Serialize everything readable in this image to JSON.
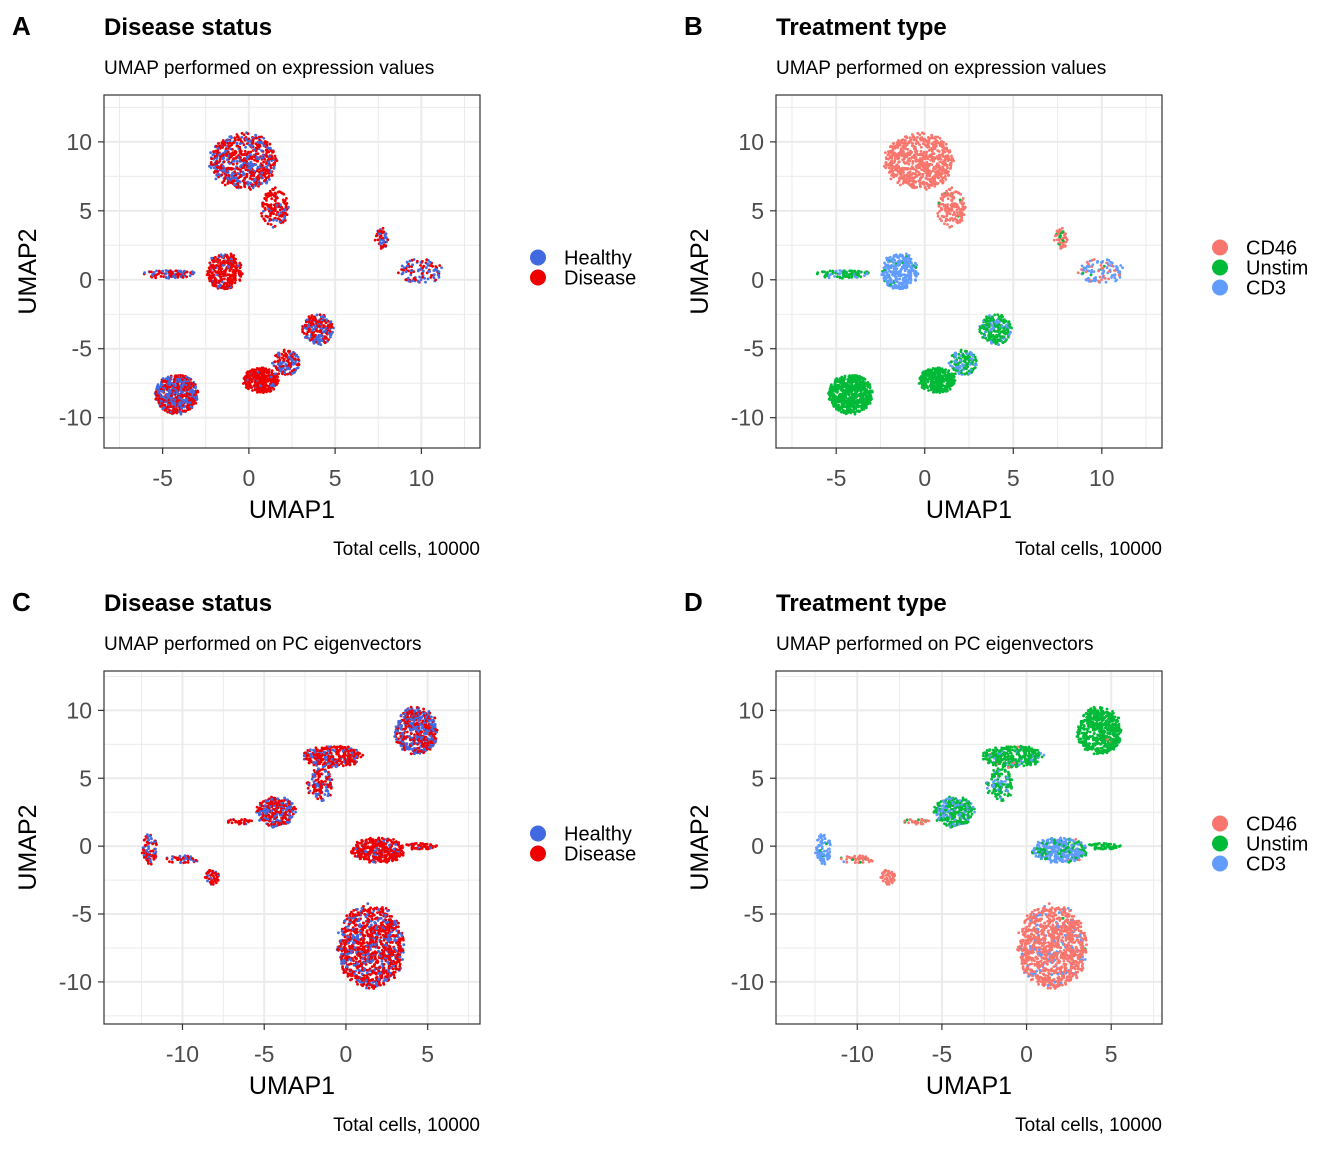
{
  "chart_data": [
    {
      "tag": "A",
      "type": "scatter",
      "title": "Disease status",
      "subtitle": "UMAP performed on expression values",
      "xlabel": "UMAP1",
      "ylabel": "UMAP2",
      "caption": "Total cells, 10000",
      "xlim": [
        -8.4,
        13.4
      ],
      "ylim": [
        -12.2,
        13.4
      ],
      "xticks": [
        -5,
        0,
        5,
        10
      ],
      "yticks": [
        -10,
        -5,
        0,
        5,
        10
      ],
      "grid": true,
      "legend": {
        "placement": "right",
        "entries": [
          "Healthy",
          "Disease"
        ],
        "colors": [
          "#4169E1",
          "#EE0000"
        ]
      },
      "clusters": [
        {
          "x": -0.3,
          "y": 8.6,
          "sx": 1.9,
          "sy": 2.0,
          "n": 700,
          "mix": [
            0.4,
            0.6
          ]
        },
        {
          "x": 1.5,
          "y": 5.2,
          "sx": 0.8,
          "sy": 1.4,
          "n": 150,
          "mix": [
            0.2,
            0.8
          ]
        },
        {
          "x": -1.4,
          "y": 0.6,
          "sx": 1.0,
          "sy": 1.3,
          "n": 300,
          "mix": [
            0.15,
            0.85
          ]
        },
        {
          "x": -4.6,
          "y": 0.4,
          "sx": 1.6,
          "sy": 0.3,
          "n": 90,
          "mix": [
            0.5,
            0.5
          ]
        },
        {
          "x": -4.2,
          "y": -8.3,
          "sx": 1.2,
          "sy": 1.4,
          "n": 600,
          "mix": [
            0.5,
            0.5
          ]
        },
        {
          "x": 0.7,
          "y": -7.3,
          "sx": 1.0,
          "sy": 0.9,
          "n": 350,
          "mix": [
            0.08,
            0.92
          ]
        },
        {
          "x": 2.2,
          "y": -6.0,
          "sx": 0.8,
          "sy": 0.9,
          "n": 150,
          "mix": [
            0.45,
            0.55
          ]
        },
        {
          "x": 4.0,
          "y": -3.6,
          "sx": 0.9,
          "sy": 1.1,
          "n": 220,
          "mix": [
            0.4,
            0.6
          ]
        },
        {
          "x": 7.7,
          "y": 3.0,
          "sx": 0.4,
          "sy": 0.7,
          "n": 50,
          "mix": [
            0.45,
            0.55
          ]
        },
        {
          "x": 10.0,
          "y": 0.6,
          "sx": 1.3,
          "sy": 0.9,
          "n": 110,
          "mix": [
            0.5,
            0.5
          ]
        }
      ]
    },
    {
      "tag": "B",
      "type": "scatter",
      "title": "Treatment type",
      "subtitle": "UMAP performed on expression values",
      "xlabel": "UMAP1",
      "ylabel": "UMAP2",
      "caption": "Total cells, 10000",
      "xlim": [
        -8.4,
        13.4
      ],
      "ylim": [
        -12.2,
        13.4
      ],
      "xticks": [
        -5,
        0,
        5,
        10
      ],
      "yticks": [
        -10,
        -5,
        0,
        5,
        10
      ],
      "grid": true,
      "legend": {
        "placement": "right",
        "entries": [
          "CD46",
          "Unstim",
          "CD3"
        ],
        "colors": [
          "#F8766D",
          "#00BA38",
          "#619CFF"
        ]
      },
      "clusters": [
        {
          "x": -0.3,
          "y": 8.6,
          "sx": 1.9,
          "sy": 2.0,
          "n": 700,
          "mix": [
            1,
            0,
            0
          ]
        },
        {
          "x": 1.5,
          "y": 5.2,
          "sx": 0.8,
          "sy": 1.4,
          "n": 150,
          "mix": [
            0.97,
            0.03,
            0
          ]
        },
        {
          "x": -1.4,
          "y": 0.6,
          "sx": 1.0,
          "sy": 1.3,
          "n": 300,
          "mix": [
            0,
            0.05,
            0.95
          ]
        },
        {
          "x": -4.6,
          "y": 0.4,
          "sx": 1.6,
          "sy": 0.3,
          "n": 90,
          "mix": [
            0,
            0.8,
            0.2
          ]
        },
        {
          "x": -4.2,
          "y": -8.3,
          "sx": 1.2,
          "sy": 1.4,
          "n": 600,
          "mix": [
            0,
            1,
            0
          ]
        },
        {
          "x": 0.7,
          "y": -7.3,
          "sx": 1.0,
          "sy": 0.9,
          "n": 350,
          "mix": [
            0,
            1,
            0
          ]
        },
        {
          "x": 2.2,
          "y": -6.0,
          "sx": 0.8,
          "sy": 0.9,
          "n": 150,
          "mix": [
            0,
            0.6,
            0.4
          ]
        },
        {
          "x": 4.0,
          "y": -3.6,
          "sx": 0.9,
          "sy": 1.1,
          "n": 220,
          "mix": [
            0,
            0.8,
            0.2
          ]
        },
        {
          "x": 7.7,
          "y": 3.0,
          "sx": 0.4,
          "sy": 0.7,
          "n": 50,
          "mix": [
            0.85,
            0.15,
            0
          ]
        },
        {
          "x": 10.0,
          "y": 0.6,
          "sx": 1.3,
          "sy": 0.9,
          "n": 110,
          "mix": [
            0.35,
            0.05,
            0.6
          ]
        }
      ]
    },
    {
      "tag": "C",
      "type": "scatter",
      "title": "Disease status",
      "subtitle": "UMAP performed on PC eigenvectors",
      "xlabel": "UMAP1",
      "ylabel": "UMAP2",
      "caption": "Total cells, 10000",
      "xlim": [
        -14.8,
        8.2
      ],
      "ylim": [
        -13.1,
        12.9
      ],
      "xticks": [
        -10,
        -5,
        0,
        5
      ],
      "yticks": [
        -10,
        -5,
        0,
        5,
        10
      ],
      "grid": true,
      "legend": {
        "placement": "right",
        "entries": [
          "Healthy",
          "Disease"
        ],
        "colors": [
          "#4169E1",
          "#EE0000"
        ]
      },
      "clusters": [
        {
          "x": 4.3,
          "y": 8.5,
          "sx": 1.3,
          "sy": 1.7,
          "n": 550,
          "mix": [
            0.5,
            0.5
          ]
        },
        {
          "x": -0.8,
          "y": 6.6,
          "sx": 1.8,
          "sy": 0.8,
          "n": 300,
          "mix": [
            0.25,
            0.75
          ]
        },
        {
          "x": -1.6,
          "y": 4.5,
          "sx": 0.8,
          "sy": 1.2,
          "n": 120,
          "mix": [
            0.4,
            0.6
          ]
        },
        {
          "x": -4.3,
          "y": 2.5,
          "sx": 1.2,
          "sy": 1.1,
          "n": 300,
          "mix": [
            0.45,
            0.55
          ]
        },
        {
          "x": -6.5,
          "y": 1.8,
          "sx": 0.8,
          "sy": 0.2,
          "n": 30,
          "mix": [
            0.1,
            0.9
          ]
        },
        {
          "x": 2.0,
          "y": -0.3,
          "sx": 1.6,
          "sy": 0.9,
          "n": 380,
          "mix": [
            0.1,
            0.9
          ]
        },
        {
          "x": 4.6,
          "y": 0.0,
          "sx": 1.0,
          "sy": 0.25,
          "n": 60,
          "mix": [
            0.1,
            0.9
          ]
        },
        {
          "x": -12.0,
          "y": -0.2,
          "sx": 0.5,
          "sy": 1.1,
          "n": 80,
          "mix": [
            0.5,
            0.5
          ]
        },
        {
          "x": -10.0,
          "y": -1.0,
          "sx": 1.0,
          "sy": 0.3,
          "n": 40,
          "mix": [
            0.3,
            0.7
          ]
        },
        {
          "x": -8.2,
          "y": -2.3,
          "sx": 0.45,
          "sy": 0.55,
          "n": 50,
          "mix": [
            0.2,
            0.8
          ]
        },
        {
          "x": 1.5,
          "y": -7.4,
          "sx": 2.0,
          "sy": 3.0,
          "n": 1100,
          "mix": [
            0.35,
            0.65
          ]
        }
      ]
    },
    {
      "tag": "D",
      "type": "scatter",
      "title": "Treatment type",
      "subtitle": "UMAP performed on PC eigenvectors",
      "xlabel": "UMAP1",
      "ylabel": "UMAP2",
      "caption": "Total cells, 10000",
      "xlim": [
        -14.8,
        8.0
      ],
      "ylim": [
        -13.1,
        12.9
      ],
      "xticks": [
        -10,
        -5,
        0,
        5
      ],
      "yticks": [
        -10,
        -5,
        0,
        5,
        10
      ],
      "grid": true,
      "legend": {
        "placement": "right",
        "entries": [
          "CD46",
          "Unstim",
          "CD3"
        ],
        "colors": [
          "#F8766D",
          "#00BA38",
          "#619CFF"
        ]
      },
      "clusters": [
        {
          "x": 4.3,
          "y": 8.5,
          "sx": 1.3,
          "sy": 1.7,
          "n": 550,
          "mix": [
            0.01,
            0.99,
            0
          ]
        },
        {
          "x": -0.8,
          "y": 6.6,
          "sx": 1.8,
          "sy": 0.8,
          "n": 300,
          "mix": [
            0.02,
            0.88,
            0.1
          ]
        },
        {
          "x": -1.6,
          "y": 4.5,
          "sx": 0.8,
          "sy": 1.2,
          "n": 120,
          "mix": [
            0,
            0.65,
            0.35
          ]
        },
        {
          "x": -4.3,
          "y": 2.5,
          "sx": 1.2,
          "sy": 1.1,
          "n": 300,
          "mix": [
            0,
            0.7,
            0.3
          ]
        },
        {
          "x": -6.5,
          "y": 1.8,
          "sx": 0.8,
          "sy": 0.2,
          "n": 30,
          "mix": [
            0.9,
            0.1,
            0
          ]
        },
        {
          "x": 2.0,
          "y": -0.3,
          "sx": 1.6,
          "sy": 0.9,
          "n": 380,
          "mix": [
            0.01,
            0.3,
            0.69
          ]
        },
        {
          "x": 4.6,
          "y": 0.0,
          "sx": 1.0,
          "sy": 0.25,
          "n": 60,
          "mix": [
            0,
            1,
            0
          ]
        },
        {
          "x": -12.0,
          "y": -0.2,
          "sx": 0.5,
          "sy": 1.1,
          "n": 80,
          "mix": [
            0.03,
            0.05,
            0.92
          ]
        },
        {
          "x": -10.0,
          "y": -1.0,
          "sx": 1.0,
          "sy": 0.3,
          "n": 40,
          "mix": [
            0.8,
            0.1,
            0.1
          ]
        },
        {
          "x": -8.2,
          "y": -2.3,
          "sx": 0.45,
          "sy": 0.55,
          "n": 50,
          "mix": [
            1,
            0,
            0
          ]
        },
        {
          "x": 1.5,
          "y": -7.4,
          "sx": 2.0,
          "sy": 3.0,
          "n": 1100,
          "mix": [
            0.9,
            0.005,
            0.095
          ]
        }
      ]
    }
  ]
}
